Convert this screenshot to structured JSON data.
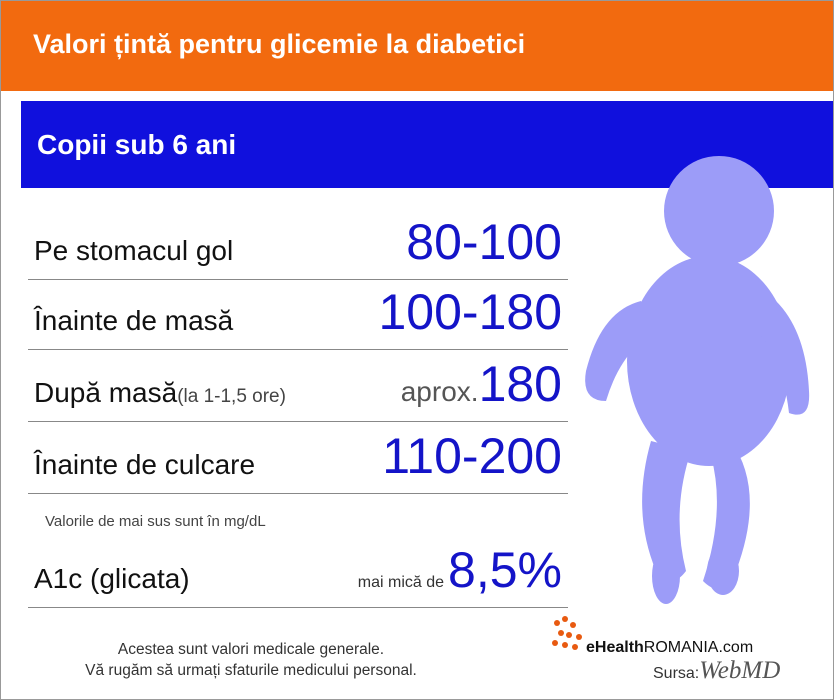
{
  "header": {
    "title": "Valori țintă pentru glicemie la diabetici"
  },
  "section": {
    "title": "Copii sub 6 ani"
  },
  "rows": [
    {
      "label": "Pe stomacul gol",
      "value": "80-100"
    },
    {
      "label": "Înainte de masă",
      "value": "100-180"
    },
    {
      "label": "După masă",
      "note": "(la 1-1,5 ore)",
      "prefix": "aprox.",
      "value": "180"
    },
    {
      "label": "Înainte de culcare",
      "value": "110-200"
    }
  ],
  "units_note": "Valorile de mai sus sunt în mg/dL",
  "a1c": {
    "label": "A1c (glicata)",
    "prefix": "mai mică de",
    "value": "8,5%"
  },
  "footer": [
    "Acestea sunt valori medicale generale.",
    "Vă rugăm să urmați sfaturile medicului personal."
  ],
  "logo": {
    "brand": "eHealth",
    "domain": "ROMANIA.com"
  },
  "source": {
    "label": "Sursa:",
    "name": "WebMD"
  }
}
